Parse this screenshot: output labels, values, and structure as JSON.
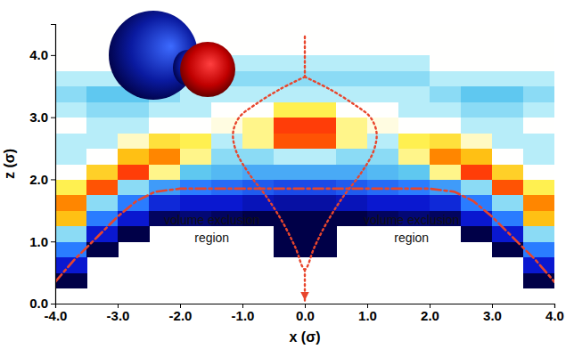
{
  "chart_data": {
    "type": "heatmap",
    "x_label": "x (σ)",
    "y_label": "z (σ)",
    "xlim": [
      -4,
      4
    ],
    "ylim": [
      0,
      4.5
    ],
    "xticks": [
      {
        "value": -4,
        "label": "-4.0"
      },
      {
        "value": -3,
        "label": "-3.0"
      },
      {
        "value": -2,
        "label": "-2.0"
      },
      {
        "value": -1,
        "label": "-1.0"
      },
      {
        "value": 0,
        "label": "0.0"
      },
      {
        "value": 1,
        "label": "1.0"
      },
      {
        "value": 2,
        "label": "2.0"
      },
      {
        "value": 3,
        "label": "3.0"
      },
      {
        "value": 4,
        "label": "4.0"
      }
    ],
    "yticks": [
      {
        "value": 0,
        "label": "0.0"
      },
      {
        "value": 1,
        "label": "1.0"
      },
      {
        "value": 2,
        "label": "2.0"
      },
      {
        "value": 3,
        "label": "3.0"
      },
      {
        "value": 4,
        "label": "4.0"
      }
    ],
    "zlim": [
      0,
      3
    ],
    "cell_x": [
      -3.75,
      -3.25,
      -2.75,
      -2.25,
      -1.75,
      -1.25,
      -0.75,
      -0.25,
      0.25,
      0.75,
      1.25,
      1.75,
      2.25,
      2.75,
      3.25,
      3.75
    ],
    "cell_z": [
      0.125,
      0.375,
      0.625,
      0.875,
      1.125,
      1.375,
      1.625,
      1.875,
      2.125,
      2.375,
      2.625,
      2.875,
      3.125,
      3.375,
      3.625,
      3.875,
      4.125,
      4.375
    ],
    "cells": [
      [
        null,
        null,
        null,
        null,
        null,
        null,
        null,
        null,
        null,
        null,
        null,
        null,
        null,
        null,
        null,
        null
      ],
      [
        0.0,
        null,
        null,
        null,
        null,
        null,
        null,
        null,
        null,
        null,
        null,
        null,
        null,
        null,
        null,
        0.0
      ],
      [
        0.3,
        null,
        null,
        null,
        null,
        null,
        null,
        null,
        null,
        null,
        null,
        null,
        null,
        null,
        null,
        0.3
      ],
      [
        0.6,
        0.0,
        null,
        null,
        null,
        null,
        null,
        0.0,
        0.0,
        null,
        null,
        null,
        null,
        null,
        0.0,
        0.6
      ],
      [
        0.9,
        0.3,
        0.0,
        null,
        null,
        null,
        null,
        0.0,
        0.0,
        null,
        null,
        null,
        null,
        0.0,
        0.3,
        0.9
      ],
      [
        1.6,
        0.6,
        0.3,
        0.05,
        0.1,
        0.05,
        0.0,
        0.0,
        0.0,
        0.0,
        0.05,
        0.1,
        0.05,
        0.3,
        0.6,
        1.6
      ],
      [
        2.0,
        0.9,
        0.6,
        0.35,
        0.3,
        0.3,
        0.25,
        0.2,
        0.2,
        0.25,
        0.3,
        0.3,
        0.35,
        0.6,
        0.9,
        2.0
      ],
      [
        1.3,
        2.4,
        0.9,
        0.7,
        0.6,
        0.55,
        0.5,
        0.45,
        0.45,
        0.5,
        0.55,
        0.6,
        0.7,
        0.9,
        2.4,
        1.3
      ],
      [
        1.0,
        1.5,
        2.6,
        1.2,
        0.85,
        0.8,
        0.75,
        0.75,
        0.75,
        0.75,
        0.8,
        0.85,
        1.2,
        2.6,
        1.5,
        1.0
      ],
      [
        0.95,
        1.0,
        1.6,
        2.0,
        1.2,
        0.9,
        0.9,
        0.95,
        0.95,
        0.9,
        0.9,
        1.2,
        2.0,
        1.6,
        1.0,
        0.95
      ],
      [
        0.95,
        0.95,
        1.1,
        1.4,
        1.3,
        0.95,
        1.2,
        2.4,
        2.4,
        1.2,
        0.95,
        1.3,
        1.4,
        1.1,
        0.95,
        0.95
      ],
      [
        1.0,
        0.95,
        0.95,
        1.0,
        1.0,
        1.05,
        1.2,
        2.6,
        2.6,
        1.2,
        1.05,
        1.0,
        1.0,
        0.95,
        0.95,
        1.0
      ],
      [
        0.95,
        0.9,
        0.9,
        0.95,
        0.95,
        1.0,
        1.0,
        1.3,
        1.3,
        1.0,
        1.0,
        0.95,
        0.95,
        0.9,
        0.9,
        0.95
      ],
      [
        0.9,
        0.85,
        0.85,
        0.9,
        0.95,
        0.95,
        0.95,
        0.95,
        0.95,
        0.95,
        0.95,
        0.95,
        0.9,
        0.85,
        0.85,
        0.9
      ],
      [
        0.95,
        0.95,
        0.95,
        0.95,
        0.9,
        0.9,
        0.9,
        0.9,
        0.9,
        0.9,
        0.9,
        0.9,
        0.95,
        0.95,
        0.95,
        0.95
      ],
      [
        1.0,
        1.0,
        1.0,
        1.0,
        0.95,
        0.95,
        0.95,
        0.95,
        0.95,
        0.95,
        0.95,
        0.95,
        1.0,
        1.0,
        1.0,
        1.0
      ],
      [
        1.0,
        1.0,
        1.0,
        1.0,
        1.0,
        1.0,
        1.0,
        1.0,
        1.0,
        1.0,
        1.0,
        1.0,
        1.0,
        1.0,
        1.0,
        1.0
      ],
      [
        1.0,
        1.0,
        1.0,
        1.0,
        1.0,
        1.0,
        1.0,
        1.0,
        1.0,
        1.0,
        1.0,
        1.0,
        1.0,
        1.0,
        1.0,
        1.0
      ]
    ],
    "lines": [
      {
        "x": [
          -4.0,
          -3.7,
          -3.3,
          -3.0,
          -2.7,
          -2.4,
          -2.0,
          -1.0,
          0.0,
          1.0,
          2.0,
          2.4,
          2.7,
          3.0,
          3.3,
          3.7,
          4.0
        ],
        "values": [
          0.35,
          0.7,
          1.1,
          1.4,
          1.65,
          1.8,
          1.85,
          1.85,
          1.85,
          1.85,
          1.85,
          1.8,
          1.65,
          1.4,
          1.1,
          0.7,
          0.35
        ],
        "color": "#e8452c",
        "line_style": "dashdot"
      },
      {
        "x": [
          0.0,
          0.4,
          0.8,
          1.05,
          1.15,
          1.1,
          0.9,
          0.6,
          0.35,
          0.15,
          0.0,
          -0.15,
          -0.35,
          -0.6,
          -0.9,
          -1.1,
          -1.15,
          -1.05,
          -0.8,
          -0.4,
          0.0
        ],
        "values": [
          3.65,
          3.45,
          3.2,
          3.0,
          2.75,
          2.45,
          2.1,
          1.7,
          1.3,
          0.9,
          0.55,
          0.9,
          1.3,
          1.7,
          2.1,
          2.45,
          2.75,
          3.0,
          3.2,
          3.45,
          3.65
        ],
        "color": "#e8452c",
        "line_style": "dotted"
      },
      {
        "x": [
          0.0,
          0.0
        ],
        "values": [
          4.3,
          3.65
        ],
        "color": "#e8452c",
        "line_style": "dotted"
      },
      {
        "x": [
          0.0,
          0.0
        ],
        "values": [
          0.55,
          0.05
        ],
        "color": "#e8452c",
        "line_style": "dotted",
        "marker": "arrow"
      }
    ],
    "annotations": [
      [
        "volume exclusion",
        "region"
      ],
      [
        "volume exclusion",
        "region"
      ]
    ]
  }
}
